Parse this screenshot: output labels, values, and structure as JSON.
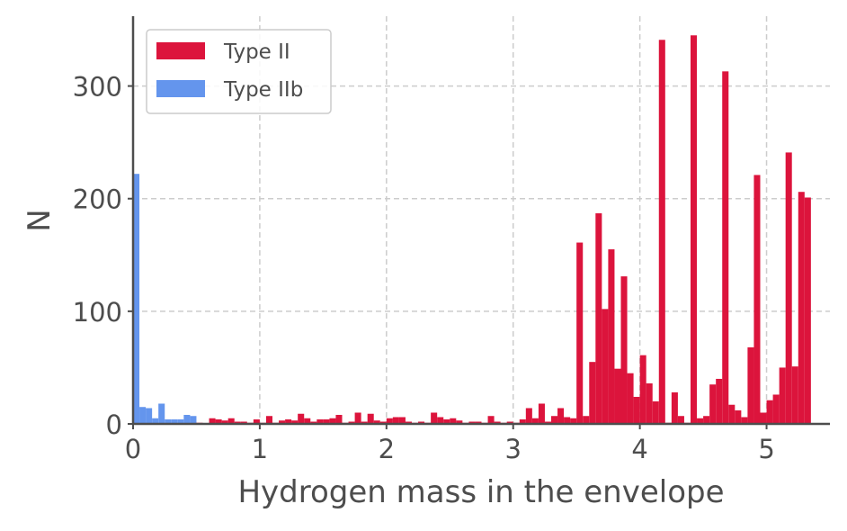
{
  "chart_data": {
    "type": "bar",
    "title": "",
    "xlabel": "Hydrogen mass in the envelope",
    "ylabel": "N",
    "xlim": [
      0,
      5.5
    ],
    "ylim": [
      0,
      362
    ],
    "xticks": [
      0,
      1,
      2,
      3,
      4,
      5
    ],
    "yticks": [
      0,
      100,
      200,
      300
    ],
    "grid": true,
    "legend_position": "top-left",
    "bin_width": 0.05,
    "series": [
      {
        "name": "Type II",
        "color": "#dc143c",
        "bins": [
          [
            0.45,
            2
          ],
          [
            0.5,
            1
          ],
          [
            0.6,
            5
          ],
          [
            0.65,
            4
          ],
          [
            0.7,
            3
          ],
          [
            0.75,
            5
          ],
          [
            0.8,
            2
          ],
          [
            0.85,
            2
          ],
          [
            0.9,
            1
          ],
          [
            0.95,
            4
          ],
          [
            1.0,
            1
          ],
          [
            1.05,
            7
          ],
          [
            1.1,
            1
          ],
          [
            1.15,
            3
          ],
          [
            1.2,
            4
          ],
          [
            1.25,
            3
          ],
          [
            1.3,
            9
          ],
          [
            1.35,
            5
          ],
          [
            1.4,
            2
          ],
          [
            1.45,
            4
          ],
          [
            1.5,
            4
          ],
          [
            1.55,
            5
          ],
          [
            1.6,
            8
          ],
          [
            1.65,
            1
          ],
          [
            1.7,
            2
          ],
          [
            1.75,
            10
          ],
          [
            1.8,
            2
          ],
          [
            1.85,
            9
          ],
          [
            1.9,
            3
          ],
          [
            1.95,
            2
          ],
          [
            2.0,
            5
          ],
          [
            2.05,
            6
          ],
          [
            2.1,
            6
          ],
          [
            2.15,
            2
          ],
          [
            2.2,
            1
          ],
          [
            2.25,
            2
          ],
          [
            2.3,
            1
          ],
          [
            2.35,
            10
          ],
          [
            2.4,
            6
          ],
          [
            2.45,
            4
          ],
          [
            2.5,
            5
          ],
          [
            2.55,
            3
          ],
          [
            2.6,
            1
          ],
          [
            2.65,
            2
          ],
          [
            2.7,
            2
          ],
          [
            2.75,
            1
          ],
          [
            2.8,
            7
          ],
          [
            2.85,
            2
          ],
          [
            2.9,
            1
          ],
          [
            2.95,
            2
          ],
          [
            3.0,
            1
          ],
          [
            3.05,
            4
          ],
          [
            3.1,
            14
          ],
          [
            3.15,
            5
          ],
          [
            3.2,
            18
          ],
          [
            3.25,
            2
          ],
          [
            3.3,
            7
          ],
          [
            3.35,
            14
          ],
          [
            3.4,
            6
          ],
          [
            3.45,
            5
          ],
          [
            3.5,
            161
          ],
          [
            3.55,
            7
          ],
          [
            3.6,
            55
          ],
          [
            3.65,
            187
          ],
          [
            3.7,
            102
          ],
          [
            3.75,
            155
          ],
          [
            3.8,
            49
          ],
          [
            3.85,
            131
          ],
          [
            3.9,
            45
          ],
          [
            3.95,
            24
          ],
          [
            4.0,
            61
          ],
          [
            4.05,
            36
          ],
          [
            4.1,
            20
          ],
          [
            4.15,
            341
          ],
          [
            4.2,
            1
          ],
          [
            4.25,
            28
          ],
          [
            4.3,
            7
          ],
          [
            4.35,
            1
          ],
          [
            4.4,
            345
          ],
          [
            4.45,
            5
          ],
          [
            4.5,
            7
          ],
          [
            4.55,
            35
          ],
          [
            4.6,
            40
          ],
          [
            4.65,
            313
          ],
          [
            4.7,
            17
          ],
          [
            4.75,
            12
          ],
          [
            4.8,
            6
          ],
          [
            4.85,
            68
          ],
          [
            4.9,
            221
          ],
          [
            4.95,
            10
          ],
          [
            5.0,
            21
          ],
          [
            5.05,
            26
          ],
          [
            5.1,
            50
          ],
          [
            5.15,
            241
          ],
          [
            5.2,
            51
          ],
          [
            5.25,
            206
          ],
          [
            5.3,
            201
          ]
        ]
      },
      {
        "name": "Type IIb",
        "color": "#6495ed",
        "bins": [
          [
            0.0,
            222
          ],
          [
            0.05,
            15
          ],
          [
            0.1,
            14
          ],
          [
            0.15,
            5
          ],
          [
            0.2,
            18
          ],
          [
            0.25,
            4
          ],
          [
            0.3,
            4
          ],
          [
            0.35,
            4
          ],
          [
            0.4,
            8
          ],
          [
            0.45,
            7
          ]
        ]
      }
    ]
  }
}
